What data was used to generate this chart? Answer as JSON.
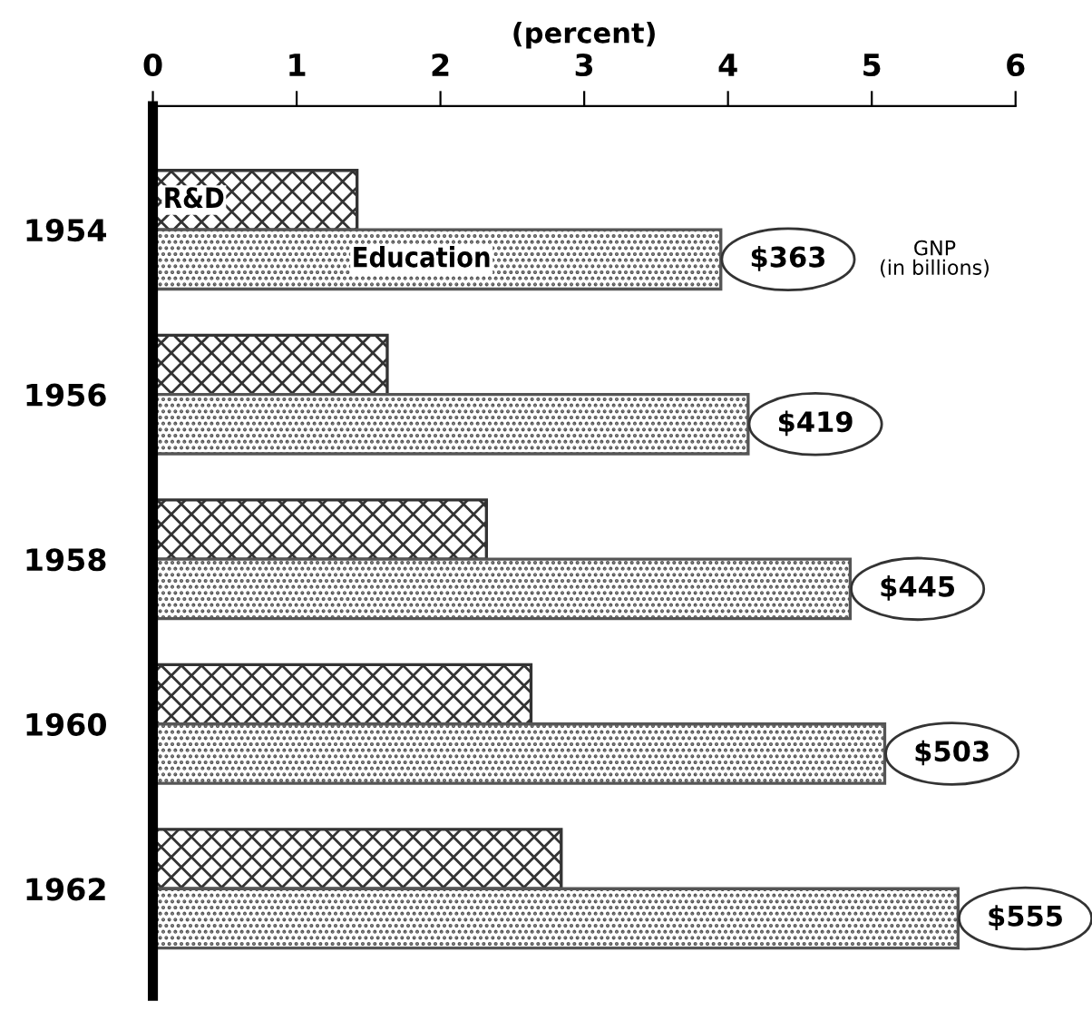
{
  "chart_data": {
    "type": "bar",
    "orientation": "horizontal",
    "xlabel": "(percent)",
    "categories": [
      "1954",
      "1956",
      "1958",
      "1960",
      "1962"
    ],
    "series": [
      {
        "name": "R&D",
        "color": "#333333",
        "values": [
          1.42,
          1.63,
          2.32,
          2.63,
          2.84
        ]
      },
      {
        "name": "Education",
        "color": "#555555",
        "values": [
          3.95,
          4.14,
          4.85,
          5.09,
          5.6
        ]
      }
    ],
    "xlim": [
      0,
      6
    ],
    "xticks": [
      0,
      1,
      2,
      3,
      4,
      5,
      6
    ],
    "grid": false,
    "legend": false,
    "annotations": [
      "$363",
      "$419",
      "$445",
      "$503",
      "$555",
      "GNP\n(in billions)"
    ]
  }
}
